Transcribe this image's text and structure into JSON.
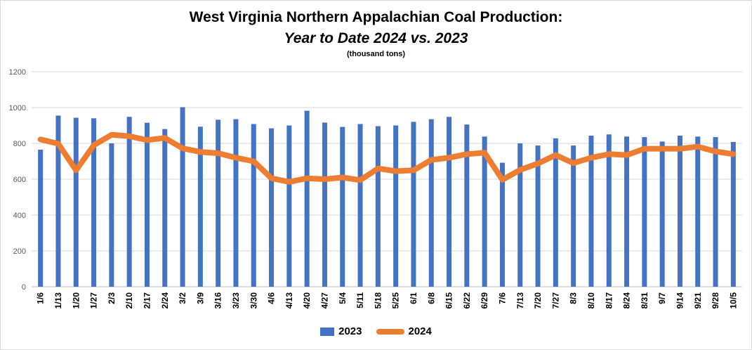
{
  "title_line1": "West Virginia Northern Appalachian Coal Production:",
  "title_line2": "Year to Date 2024 vs. 2023",
  "subtitle": "(thousand tons)",
  "colors": {
    "bar": "#4472c4",
    "line": "#ed7d31",
    "grid": "#d9d9d9",
    "axis": "#bfbfbf"
  },
  "chart_data": {
    "type": "bar",
    "title": "West Virginia Northern Appalachian Coal Production: Year to Date 2024 vs. 2023",
    "subtitle": "(thousand tons)",
    "xlabel": "",
    "ylabel": "",
    "ylim": [
      0,
      1200
    ],
    "yticks": [
      0,
      200,
      400,
      600,
      800,
      1000,
      1200
    ],
    "grid": true,
    "legend_position": "bottom",
    "categories": [
      "1/6",
      "1/13",
      "1/20",
      "1/27",
      "2/3",
      "2/10",
      "2/17",
      "2/24",
      "3/2",
      "3/9",
      "3/16",
      "3/23",
      "3/30",
      "4/6",
      "4/13",
      "4/20",
      "4/27",
      "5/4",
      "5/11",
      "5/18",
      "5/25",
      "6/1",
      "6/8",
      "6/15",
      "6/22",
      "6/29",
      "7/6",
      "7/13",
      "7/20",
      "7/27",
      "8/3",
      "8/10",
      "8/17",
      "8/24",
      "8/31",
      "9/7",
      "9/14",
      "9/21",
      "9/28",
      "10/5"
    ],
    "series": [
      {
        "name": "2023",
        "type": "bar",
        "values": [
          765,
          955,
          943,
          940,
          800,
          948,
          915,
          880,
          1002,
          893,
          932,
          935,
          908,
          884,
          900,
          982,
          916,
          892,
          908,
          896,
          900,
          920,
          935,
          948,
          905,
          838,
          692,
          800,
          788,
          828,
          788,
          843,
          850,
          838,
          835,
          810,
          843,
          838,
          835,
          808
        ]
      },
      {
        "name": "2024",
        "type": "line",
        "values": [
          822,
          798,
          650,
          790,
          848,
          840,
          818,
          830,
          772,
          752,
          745,
          720,
          700,
          605,
          585,
          605,
          600,
          610,
          595,
          660,
          645,
          650,
          708,
          720,
          740,
          748,
          597,
          652,
          688,
          735,
          690,
          720,
          740,
          735,
          770,
          770,
          770,
          782,
          755,
          740
        ]
      }
    ]
  }
}
